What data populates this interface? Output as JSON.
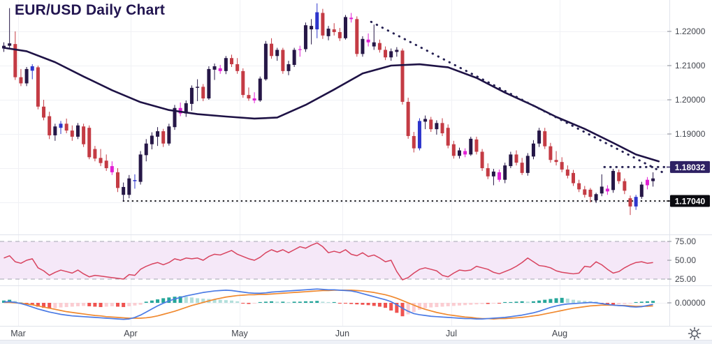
{
  "title": "EUR/USD Daily Chart",
  "instrument": "EUR/USD",
  "timeframe": "Daily",
  "x_axis": {
    "months": [
      "Mar",
      "Apr",
      "May",
      "Jun",
      "Jul",
      "Aug"
    ],
    "month_positions": [
      26,
      187,
      343,
      490,
      646,
      801
    ]
  },
  "y_axis": {
    "tick_labels": [
      "1.22000",
      "1.21000",
      "1.20000",
      "1.19000"
    ],
    "tick_values": [
      1.22,
      1.21,
      1.2,
      1.19
    ],
    "grid_values": [
      1.22,
      1.21,
      1.2,
      1.19,
      1.18,
      1.17
    ],
    "visible_range_top": 1.2292,
    "visible_range_bottom": 1.1606
  },
  "price_labels": [
    {
      "text": "1.18032",
      "value": 1.18032,
      "bg": "#2e2163"
    },
    {
      "text": "1.17040",
      "value": 1.1704,
      "bg": "#0b0b10"
    }
  ],
  "rsi_axis": {
    "tick_labels": [
      "75.00",
      "50.00",
      "25.00"
    ],
    "tick_values": [
      75,
      50,
      25
    ]
  },
  "macd_axis": {
    "zero_label": "0.00000"
  },
  "colors": {
    "title": "#221550",
    "axis_text": "#42454d",
    "grid": "#f0f1f5",
    "pane_border": "#e0e3eb",
    "candle": {
      "n": "#261747",
      "r": "#c43b44",
      "b": "#2d35cc",
      "m": "#e11fd4"
    },
    "moving_average": "#1e1245",
    "trendline": "#262153",
    "support_line": "#15151c",
    "rsi_line": "#d8435f",
    "rsi_band_fill": "#f5e8f8",
    "rsi_band_border": "#a3a6b0",
    "macd_line": "#4b7be5",
    "macd_signal": "#f0892f",
    "hist_pos_strong": "#26a69a",
    "hist_pos_weak": "#b2dfdb",
    "hist_neg_strong": "#ef5350",
    "hist_neg_weak": "#fbcdd2",
    "bottom_strip": "#eef1f7"
  },
  "icons": {
    "settings": "gear-icon"
  },
  "chart_data": {
    "type": "candlestick+indicators",
    "title": "EUR/USD Daily Chart",
    "series": [
      "candles",
      "moving_average",
      "trendline",
      "support",
      "RSI",
      "MACD"
    ],
    "candles": [
      [
        1.215,
        1.2168,
        1.214,
        1.2158,
        "n"
      ],
      [
        1.2158,
        1.2268,
        1.215,
        1.2165,
        "n"
      ],
      [
        1.2163,
        1.22,
        1.2058,
        1.2066,
        "r"
      ],
      [
        1.2066,
        1.209,
        1.204,
        1.2048,
        "r"
      ],
      [
        1.2048,
        1.2096,
        1.204,
        1.209,
        "n"
      ],
      [
        1.2085,
        1.2104,
        1.206,
        1.2098,
        "b"
      ],
      [
        1.2095,
        1.21,
        1.1972,
        1.198,
        "r"
      ],
      [
        1.198,
        1.2,
        1.194,
        1.1948,
        "r"
      ],
      [
        1.1952,
        1.1965,
        1.1885,
        1.1896,
        "r"
      ],
      [
        1.1896,
        1.193,
        1.188,
        1.1922,
        "n"
      ],
      [
        1.1918,
        1.1938,
        1.19,
        1.193,
        "b"
      ],
      [
        1.193,
        1.1945,
        1.1902,
        1.191,
        "r"
      ],
      [
        1.191,
        1.1925,
        1.188,
        1.1892,
        "r"
      ],
      [
        1.1892,
        1.1932,
        1.1885,
        1.1925,
        "n"
      ],
      [
        1.1922,
        1.193,
        1.1862,
        1.187,
        "r"
      ],
      [
        1.1918,
        1.1925,
        1.1826,
        1.1832,
        "r"
      ],
      [
        1.1856,
        1.1865,
        1.182,
        1.1828,
        "r"
      ],
      [
        1.183,
        1.1856,
        1.1806,
        1.1815,
        "r"
      ],
      [
        1.1822,
        1.184,
        1.1792,
        1.18,
        "r"
      ],
      [
        1.1806,
        1.182,
        1.178,
        1.1788,
        "m"
      ],
      [
        1.1788,
        1.18,
        1.173,
        1.1742,
        "r"
      ],
      [
        1.1745,
        1.1758,
        1.1704,
        1.1722,
        "n"
      ],
      [
        1.1722,
        1.178,
        1.1712,
        1.177,
        "n"
      ],
      [
        1.1765,
        1.1782,
        1.174,
        1.1762,
        "b"
      ],
      [
        1.176,
        1.185,
        1.1752,
        1.184,
        "n"
      ],
      [
        1.1838,
        1.1885,
        1.182,
        1.1872,
        "n"
      ],
      [
        1.187,
        1.1905,
        1.1855,
        1.1895,
        "n"
      ],
      [
        1.1892,
        1.192,
        1.1865,
        1.1908,
        "n"
      ],
      [
        1.1908,
        1.1915,
        1.1862,
        1.1872,
        "r"
      ],
      [
        1.1872,
        1.193,
        1.1866,
        1.1922,
        "n"
      ],
      [
        1.192,
        1.1985,
        1.1912,
        1.1976,
        "n"
      ],
      [
        1.1976,
        1.1992,
        1.1952,
        1.196,
        "m"
      ],
      [
        1.196,
        1.1998,
        1.195,
        1.199,
        "n"
      ],
      [
        1.1988,
        1.2042,
        1.1968,
        1.2035,
        "n"
      ],
      [
        1.2035,
        1.206,
        1.1996,
        1.2038,
        "n"
      ],
      [
        1.2038,
        1.2046,
        1.1996,
        1.2004,
        "r"
      ],
      [
        1.2004,
        1.2098,
        1.2,
        1.209,
        "n"
      ],
      [
        1.2088,
        1.2106,
        1.2058,
        1.2098,
        "n"
      ],
      [
        1.2092,
        1.2102,
        1.2076,
        1.2084,
        "m"
      ],
      [
        1.2084,
        1.2128,
        1.2075,
        1.2122,
        "n"
      ],
      [
        1.2122,
        1.2132,
        1.2096,
        1.2104,
        "r"
      ],
      [
        1.2104,
        1.2122,
        1.2076,
        1.2084,
        "r"
      ],
      [
        1.2084,
        1.2092,
        1.2006,
        1.2014,
        "r"
      ],
      [
        1.2014,
        1.2036,
        1.1997,
        1.2004,
        "r"
      ],
      [
        1.2004,
        1.2022,
        1.199,
        1.1998,
        "m"
      ],
      [
        1.1998,
        1.2068,
        1.1994,
        1.2062,
        "n"
      ],
      [
        1.206,
        1.2172,
        1.2056,
        1.2164,
        "n"
      ],
      [
        1.2164,
        1.218,
        1.212,
        1.2128,
        "r"
      ],
      [
        1.2128,
        1.2152,
        1.2114,
        1.2146,
        "n"
      ],
      [
        1.2146,
        1.2152,
        1.2076,
        1.2084,
        "r"
      ],
      [
        1.2084,
        1.2114,
        1.2072,
        1.2104,
        "n"
      ],
      [
        1.2102,
        1.2152,
        1.2096,
        1.2146,
        "n"
      ],
      [
        1.2146,
        1.2158,
        1.2126,
        1.2148,
        "m"
      ],
      [
        1.2148,
        1.2226,
        1.214,
        1.2218,
        "n"
      ],
      [
        1.2216,
        1.2236,
        1.2162,
        1.2206,
        "n"
      ],
      [
        1.2206,
        1.2282,
        1.218,
        1.2256,
        "b"
      ],
      [
        1.2254,
        1.2266,
        1.2178,
        1.2188,
        "r"
      ],
      [
        1.2186,
        1.2216,
        1.2174,
        1.2208,
        "n"
      ],
      [
        1.2206,
        1.2224,
        1.2188,
        1.2198,
        "r"
      ],
      [
        1.2198,
        1.221,
        1.2172,
        1.218,
        "r"
      ],
      [
        1.218,
        1.2248,
        1.2176,
        1.2242,
        "n"
      ],
      [
        1.224,
        1.2254,
        1.2226,
        1.2236,
        "m"
      ],
      [
        1.2236,
        1.2244,
        1.2126,
        1.2134,
        "r"
      ],
      [
        1.2134,
        1.2186,
        1.2126,
        1.2178,
        "n"
      ],
      [
        1.2176,
        1.2194,
        1.2156,
        1.2168,
        "m"
      ],
      [
        1.2156,
        1.222,
        1.2146,
        1.2168,
        "n"
      ],
      [
        1.2166,
        1.2176,
        1.2138,
        1.2146,
        "r"
      ],
      [
        1.2146,
        1.2156,
        1.2116,
        1.2124,
        "r"
      ],
      [
        1.2124,
        1.215,
        1.2114,
        1.2142,
        "n"
      ],
      [
        1.214,
        1.2154,
        1.2126,
        1.2146,
        "n"
      ],
      [
        1.2144,
        1.215,
        1.1986,
        1.1994,
        "r"
      ],
      [
        1.1994,
        1.2006,
        1.1886,
        1.1894,
        "r"
      ],
      [
        1.1894,
        1.1906,
        1.1846,
        1.1858,
        "r"
      ],
      [
        1.1858,
        1.1946,
        1.1852,
        1.1938,
        "b"
      ],
      [
        1.1936,
        1.1954,
        1.1914,
        1.1944,
        "n"
      ],
      [
        1.1942,
        1.195,
        1.1906,
        1.1914,
        "r"
      ],
      [
        1.1914,
        1.194,
        1.1898,
        1.1932,
        "n"
      ],
      [
        1.1932,
        1.1946,
        1.1894,
        1.1902,
        "r"
      ],
      [
        1.1918,
        1.1928,
        1.1858,
        1.1866,
        "r"
      ],
      [
        1.187,
        1.188,
        1.1828,
        1.1836,
        "r"
      ],
      [
        1.1836,
        1.186,
        1.1828,
        1.1852,
        "n"
      ],
      [
        1.185,
        1.1858,
        1.1832,
        1.184,
        "m"
      ],
      [
        1.184,
        1.1892,
        1.1836,
        1.1886,
        "n"
      ],
      [
        1.1884,
        1.1892,
        1.184,
        1.1848,
        "r"
      ],
      [
        1.1848,
        1.1856,
        1.1792,
        1.18,
        "r"
      ],
      [
        1.18,
        1.1814,
        1.1768,
        1.1776,
        "r"
      ],
      [
        1.1776,
        1.1798,
        1.175,
        1.179,
        "n"
      ],
      [
        1.1788,
        1.1796,
        1.176,
        1.1766,
        "m"
      ],
      [
        1.1766,
        1.1816,
        1.1756,
        1.1808,
        "n"
      ],
      [
        1.1806,
        1.1848,
        1.18,
        1.184,
        "n"
      ],
      [
        1.184,
        1.1852,
        1.1808,
        1.1816,
        "r"
      ],
      [
        1.1816,
        1.183,
        1.178,
        1.1786,
        "r"
      ],
      [
        1.1786,
        1.1844,
        1.1778,
        1.1836,
        "n"
      ],
      [
        1.1834,
        1.1882,
        1.1826,
        1.1872,
        "n"
      ],
      [
        1.1872,
        1.1918,
        1.1862,
        1.191,
        "n"
      ],
      [
        1.1908,
        1.1918,
        1.1856,
        1.1864,
        "r"
      ],
      [
        1.1864,
        1.1874,
        1.1816,
        1.1824,
        "r"
      ],
      [
        1.1824,
        1.185,
        1.1808,
        1.1818,
        "r"
      ],
      [
        1.1818,
        1.1832,
        1.1788,
        1.1796,
        "r"
      ],
      [
        1.1796,
        1.1808,
        1.177,
        1.1778,
        "r"
      ],
      [
        1.1786,
        1.1795,
        1.1748,
        1.1756,
        "r"
      ],
      [
        1.1756,
        1.1766,
        1.173,
        1.1738,
        "r"
      ],
      [
        1.1738,
        1.1748,
        1.1714,
        1.1722,
        "r"
      ],
      [
        1.1737,
        1.1742,
        1.17,
        1.1716,
        "r"
      ],
      [
        1.1706,
        1.1728,
        1.1698,
        1.1724,
        "n"
      ],
      [
        1.1726,
        1.1782,
        1.1718,
        1.1746,
        "n"
      ],
      [
        1.174,
        1.175,
        1.1722,
        1.1732,
        "m"
      ],
      [
        1.1736,
        1.1798,
        1.1728,
        1.1792,
        "n"
      ],
      [
        1.1788,
        1.1796,
        1.1754,
        1.1762,
        "r"
      ],
      [
        1.1762,
        1.177,
        1.1724,
        1.1734,
        "r"
      ],
      [
        1.1712,
        1.172,
        1.1663,
        1.1688,
        "r"
      ],
      [
        1.1688,
        1.1722,
        1.1678,
        1.1716,
        "b"
      ],
      [
        1.1716,
        1.176,
        1.171,
        1.1752,
        "n"
      ],
      [
        1.175,
        1.1774,
        1.1738,
        1.1766,
        "m"
      ],
      [
        1.1762,
        1.1788,
        1.1746,
        1.177,
        "n"
      ]
    ],
    "moving_average_anchors": [
      [
        0,
        1.2152
      ],
      [
        4,
        1.2142
      ],
      [
        9,
        1.211
      ],
      [
        14,
        1.2068
      ],
      [
        19,
        1.2028
      ],
      [
        24,
        1.1993
      ],
      [
        29,
        1.197
      ],
      [
        34,
        1.1958
      ],
      [
        39,
        1.1951
      ],
      [
        44,
        1.1945
      ],
      [
        48,
        1.1948
      ],
      [
        53,
        1.1985
      ],
      [
        58,
        1.203
      ],
      [
        63,
        1.2077
      ],
      [
        68,
        1.21
      ],
      [
        73,
        1.2104
      ],
      [
        78,
        1.2095
      ],
      [
        83,
        1.2064
      ],
      [
        88,
        1.2021
      ],
      [
        93,
        1.1983
      ],
      [
        97,
        1.195
      ],
      [
        102,
        1.1915
      ],
      [
        107,
        1.1874
      ],
      [
        111,
        1.184
      ],
      [
        115,
        1.182
      ]
    ],
    "trendline": {
      "style": "dotted",
      "from": [
        64.5,
        1.2228
      ],
      "to": [
        116,
        1.1785
      ],
      "current_value_label": "1.18032"
    },
    "resistance_segment": {
      "price": 1.18032,
      "from_x": 865,
      "style": "dotted"
    },
    "support_line": {
      "price": 1.1704,
      "from_index": 21,
      "style": "dotted",
      "label": "1.17040"
    },
    "rsi": {
      "upper_band": 75,
      "lower_band": 25,
      "midline": 50,
      "values": [
        53,
        56,
        48,
        46,
        50,
        52,
        40,
        36,
        30,
        34,
        37,
        35,
        33,
        37,
        32,
        28,
        30,
        29,
        28,
        27,
        26,
        25,
        31,
        30,
        38,
        42,
        45,
        47,
        44,
        47,
        52,
        50,
        53,
        52,
        53,
        50,
        55,
        58,
        57,
        60,
        63,
        58,
        55,
        52,
        50,
        54,
        60,
        64,
        61,
        64,
        60,
        64,
        68,
        66,
        70,
        73,
        68,
        60,
        62,
        60,
        64,
        58,
        56,
        60,
        55,
        57,
        53,
        48,
        50,
        35,
        24,
        27,
        33,
        38,
        40,
        38,
        36,
        30,
        28,
        33,
        37,
        36,
        37,
        42,
        40,
        38,
        34,
        32,
        35,
        38,
        42,
        47,
        53,
        48,
        43,
        42,
        40,
        36,
        34,
        33,
        32,
        33,
        42,
        41,
        48,
        44,
        38,
        33,
        35,
        40,
        44,
        47,
        48,
        46,
        47
      ]
    },
    "macd": {
      "values_scale": 0.0001,
      "macd": [
        2,
        3,
        1,
        -2,
        -6,
        -11,
        -16,
        -20,
        -24,
        -27,
        -30,
        -32,
        -34,
        -35,
        -36,
        -37,
        -38,
        -39,
        -40,
        -41,
        -42,
        -43,
        -42,
        -38,
        -32,
        -24,
        -16,
        -8,
        -1,
        5,
        10,
        14,
        18,
        21,
        24,
        27,
        29,
        31,
        32,
        33,
        32,
        30,
        28,
        26,
        25,
        25,
        26,
        28,
        29,
        30,
        31,
        32,
        33,
        34,
        35,
        36,
        35,
        34,
        34,
        33,
        32,
        31,
        28,
        24,
        20,
        16,
        12,
        8,
        3,
        -5,
        -14,
        -22,
        -28,
        -31,
        -33,
        -35,
        -36,
        -37,
        -38,
        -39,
        -40,
        -41,
        -41,
        -42,
        -42,
        -41,
        -40,
        -39,
        -38,
        -36,
        -34,
        -32,
        -29,
        -26,
        -22,
        -17,
        -12,
        -8,
        -5,
        -3,
        -2,
        -1,
        0,
        1,
        0,
        -2,
        -4,
        -6,
        -7,
        -8,
        -10,
        -11,
        -10,
        -7,
        -4
      ],
      "signal": [
        1,
        1,
        0,
        -1,
        -3,
        -5,
        -8,
        -11,
        -14,
        -17,
        -20,
        -23,
        -25,
        -27,
        -29,
        -31,
        -33,
        -34,
        -36,
        -37,
        -38,
        -39,
        -40,
        -40,
        -40,
        -39,
        -37,
        -34,
        -30,
        -26,
        -22,
        -17,
        -12,
        -7,
        -3,
        1,
        5,
        9,
        12,
        15,
        17,
        19,
        20,
        21,
        21,
        22,
        22,
        23,
        24,
        25,
        26,
        27,
        28,
        29,
        30,
        31,
        32,
        32,
        33,
        33,
        33,
        33,
        32,
        31,
        29,
        27,
        24,
        21,
        17,
        12,
        6,
        0,
        -6,
        -12,
        -17,
        -21,
        -25,
        -28,
        -31,
        -33,
        -35,
        -37,
        -38,
        -40,
        -41,
        -41,
        -42,
        -41,
        -41,
        -40,
        -39,
        -38,
        -36,
        -34,
        -32,
        -29,
        -26,
        -23,
        -20,
        -17,
        -14,
        -12,
        -10,
        -8,
        -7,
        -6,
        -6,
        -6,
        -7,
        -7,
        -8,
        -9,
        -9,
        -9,
        -8
      ],
      "histogram": [
        6,
        8,
        5,
        2,
        -2,
        -6,
        -10,
        -13,
        -15,
        -14,
        -12,
        -11,
        -10,
        -9,
        -8,
        -9,
        -10,
        -11,
        -10,
        -9,
        -10,
        -11,
        -9,
        -7,
        -5,
        3,
        6,
        9,
        12,
        14,
        16,
        17,
        16,
        14,
        12,
        11,
        10,
        9,
        8,
        7,
        6,
        4,
        -2,
        -3,
        -2,
        2,
        3,
        4,
        3,
        3,
        2,
        3,
        3,
        4,
        4,
        5,
        3,
        2,
        2,
        -2,
        -2,
        -3,
        -4,
        -5,
        -6,
        -8,
        -10,
        -13,
        -20,
        -26,
        -35,
        -30,
        -24,
        -18,
        -14,
        -12,
        -11,
        -10,
        -9,
        -8,
        -7,
        -6,
        -5,
        -4,
        -3,
        -3,
        -2,
        -2,
        2,
        2,
        3,
        4,
        3,
        4,
        6,
        8,
        10,
        12,
        13,
        11,
        8,
        6,
        5,
        4,
        3,
        -3,
        -4,
        -5,
        -4,
        -3,
        -2,
        2,
        3,
        4,
        5
      ]
    }
  }
}
